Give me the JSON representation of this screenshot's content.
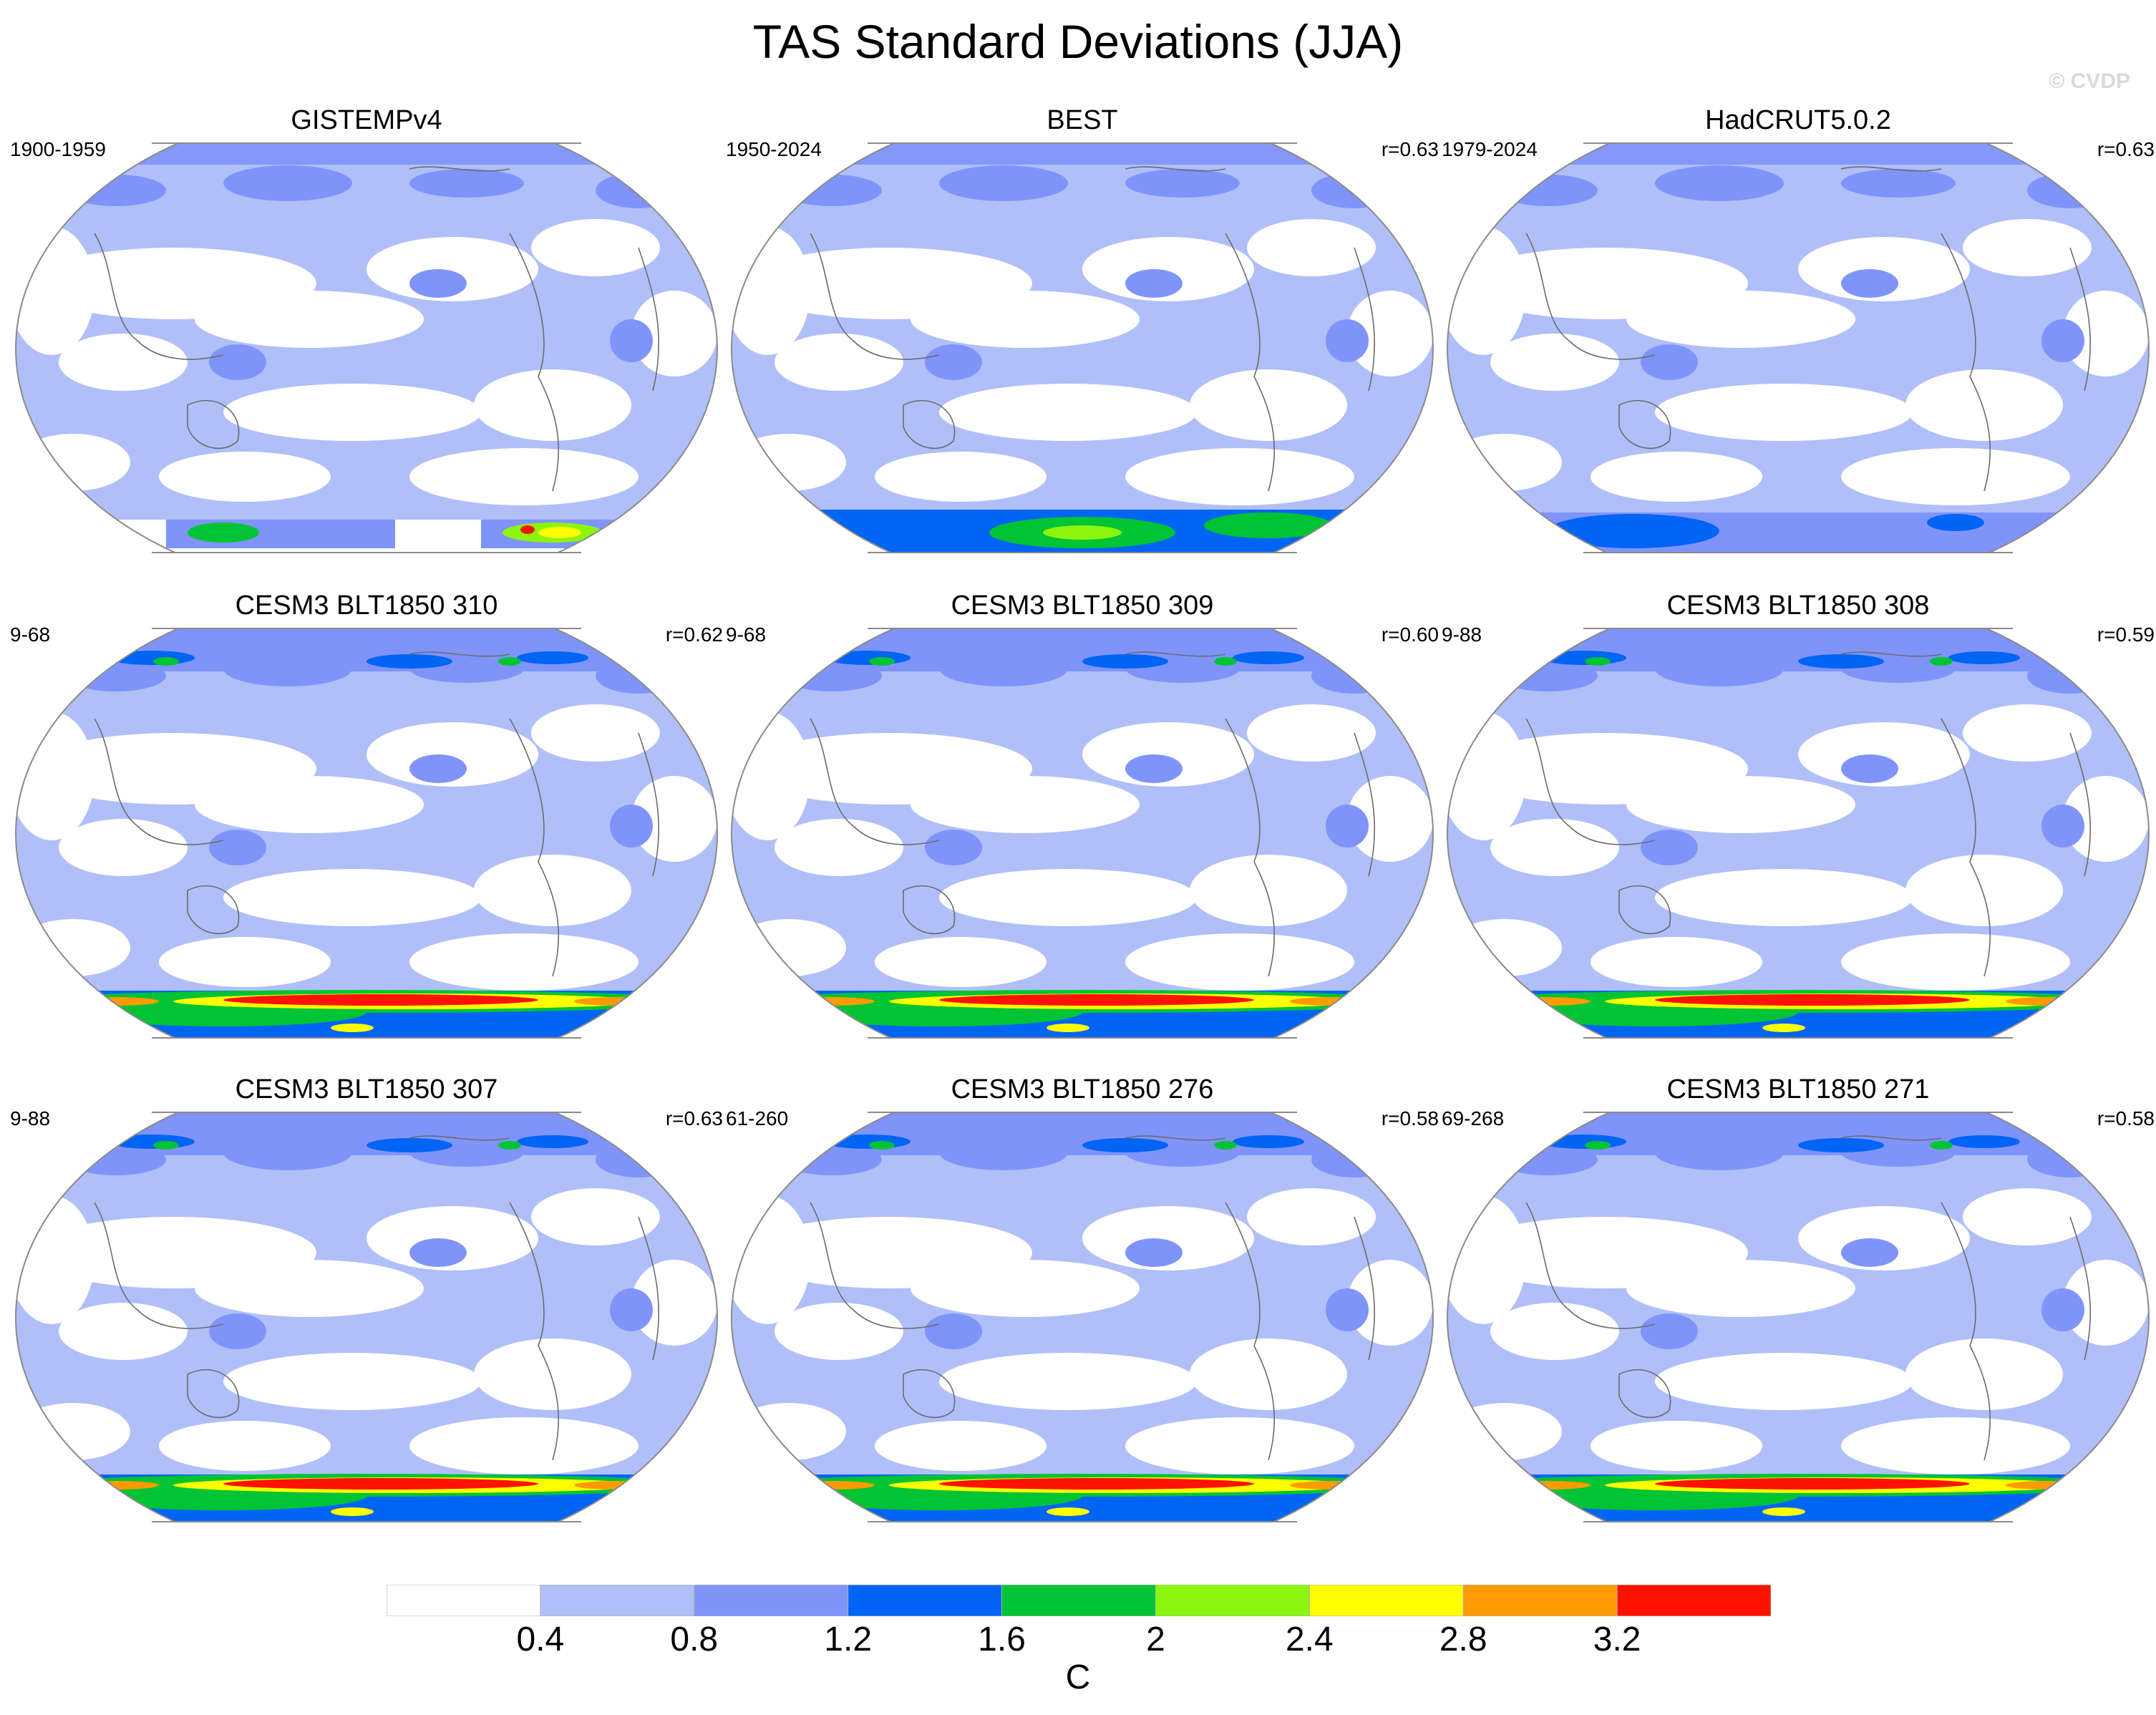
{
  "title": "TAS Standard Deviations (JJA)",
  "watermark": "© CVDP",
  "legend": {
    "unit": "C",
    "labels": [
      "0.4",
      "0.8",
      "1.2",
      "1.6",
      "2",
      "2.4",
      "2.8",
      "3.2"
    ],
    "colors": [
      "#ffffff",
      "#b0bff8",
      "#7f94fb",
      "#0064f5",
      "#00c433",
      "#8cf50f",
      "#ffff00",
      "#ff9b00",
      "#ff1200"
    ]
  },
  "panels": [
    {
      "title": "GISTEMPv4",
      "period": "1900-1959",
      "corr": "",
      "style": "gis"
    },
    {
      "title": "BEST",
      "period": "1950-2024",
      "corr": "r=0.63",
      "style": "best"
    },
    {
      "title": "HadCRUT5.0.2",
      "period": "1979-2024",
      "corr": "r=0.63",
      "style": "had"
    },
    {
      "title": "CESM3 BLT1850 310",
      "period": "9-68",
      "corr": "r=0.62",
      "style": "model"
    },
    {
      "title": "CESM3 BLT1850 309",
      "period": "9-68",
      "corr": "r=0.60",
      "style": "model"
    },
    {
      "title": "CESM3 BLT1850 308",
      "period": "9-88",
      "corr": "r=0.59",
      "style": "model"
    },
    {
      "title": "CESM3 BLT1850 307",
      "period": "9-88",
      "corr": "r=0.63",
      "style": "model"
    },
    {
      "title": "CESM3 BLT1850 276",
      "period": "61-260",
      "corr": "r=0.58",
      "style": "model"
    },
    {
      "title": "CESM3 BLT1850 271",
      "period": "69-268",
      "corr": "r=0.58",
      "style": "model"
    }
  ],
  "chart_data": {
    "type": "heatmap",
    "title": "TAS Standard Deviations (JJA)",
    "colorbar": {
      "unit": "C",
      "levels": [
        0.4,
        0.8,
        1.2,
        1.6,
        2.0,
        2.4,
        2.8,
        3.2
      ],
      "range": [
        0,
        3.6
      ]
    },
    "projection": "Robinson, Pacific-centered, global",
    "grid": false
  }
}
